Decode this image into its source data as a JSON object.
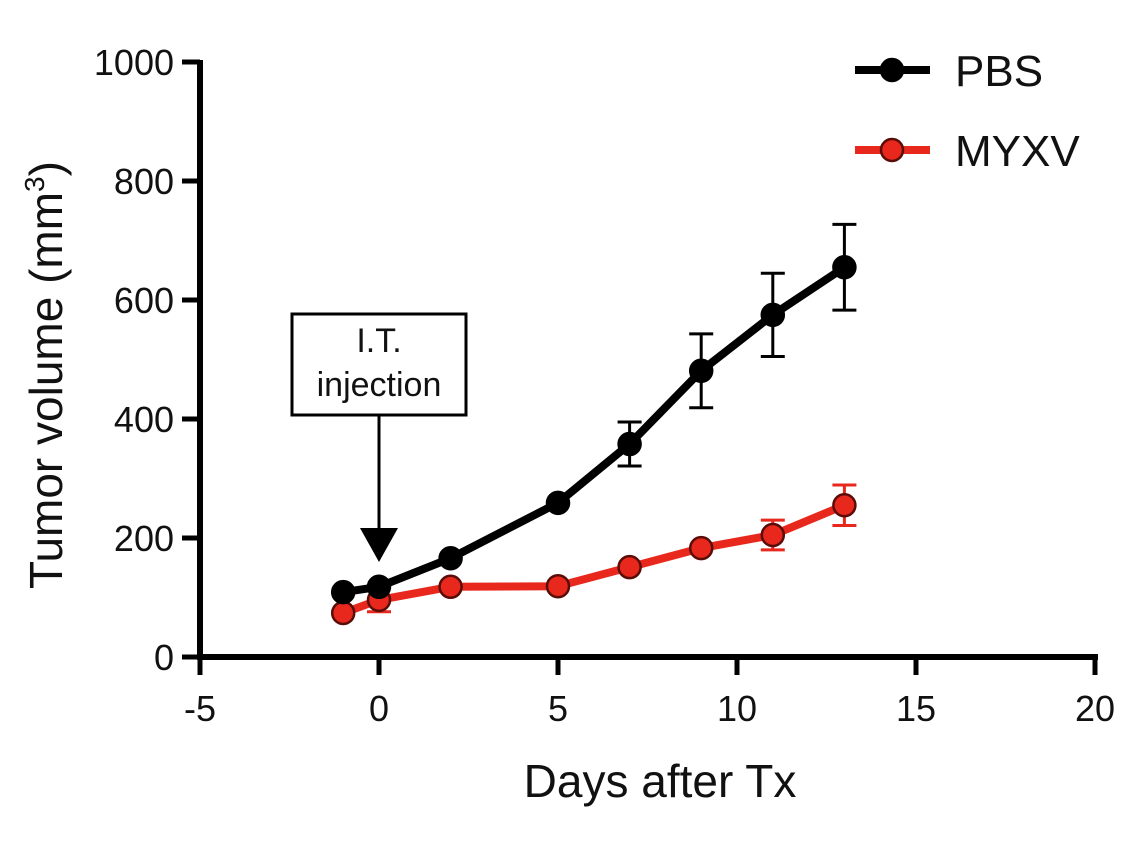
{
  "chart_data": {
    "type": "line",
    "title": "",
    "xlabel": "Days after Tx",
    "ylabel": "Tumor volume (mm",
    "ylabel_superscript": "3",
    "ylabel_close": ")",
    "xlim": [
      -5,
      20
    ],
    "ylim": [
      0,
      1000
    ],
    "xticks": [
      "-5",
      "0",
      "5",
      "10",
      "15",
      "20"
    ],
    "yticks": [
      "0",
      "200",
      "400",
      "600",
      "800",
      "1000"
    ],
    "grid": false,
    "legend_position": "top-right",
    "annotation": {
      "lines": [
        "I.T.",
        "injection"
      ],
      "x": 0
    },
    "series": [
      {
        "name": "PBS",
        "color": "#000000",
        "marker_fill": "#000000",
        "x": [
          -1,
          0,
          2,
          5,
          7,
          9,
          11,
          13
        ],
        "y": [
          109,
          118,
          166,
          259,
          358,
          481,
          575,
          655
        ],
        "error": [
          0,
          0,
          0,
          0,
          37,
          62,
          70,
          72
        ]
      },
      {
        "name": "MYXV",
        "color": "#e8281c",
        "marker_fill": "#e8281c",
        "x": [
          -1,
          0,
          2,
          5,
          7,
          9,
          11,
          13
        ],
        "y": [
          74,
          96,
          118,
          119,
          151,
          183,
          205,
          255
        ],
        "error": [
          0,
          20,
          0,
          0,
          0,
          0,
          25,
          34
        ]
      }
    ]
  }
}
